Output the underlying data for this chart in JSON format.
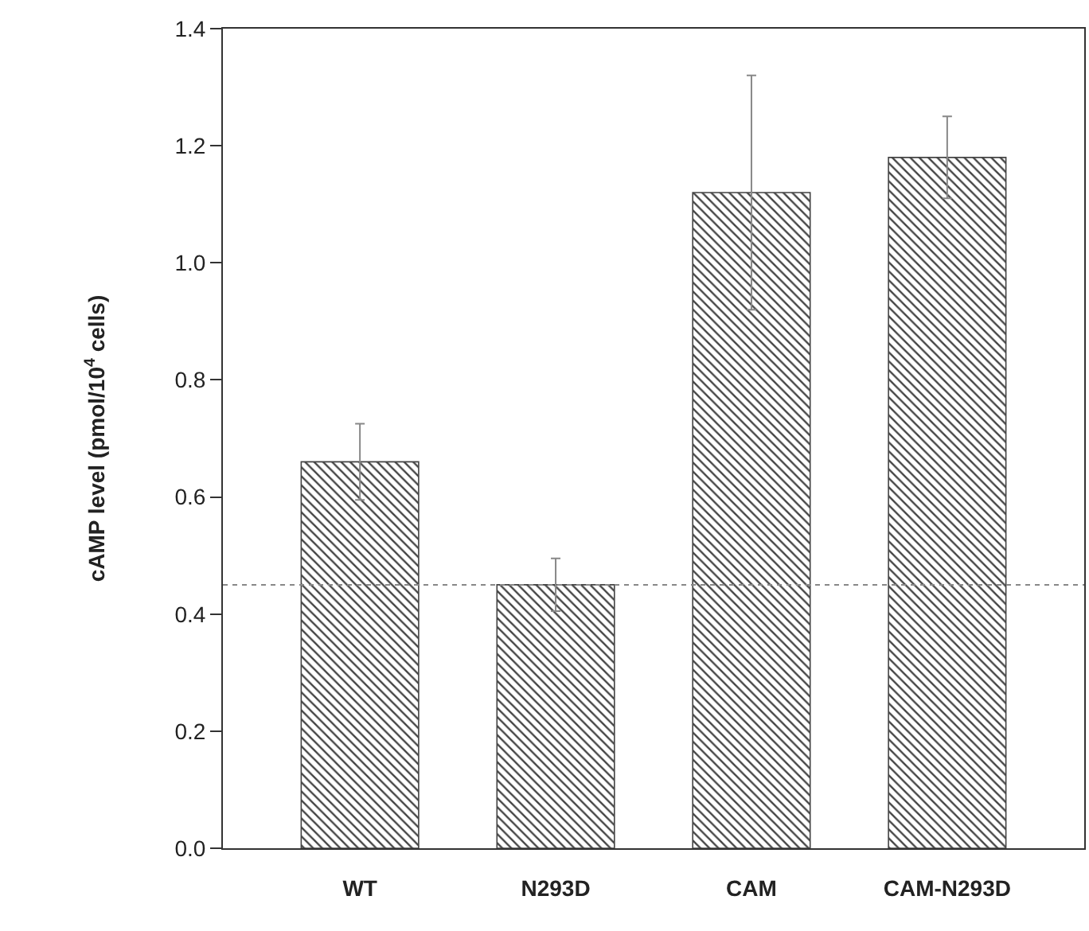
{
  "chart_data": {
    "type": "bar",
    "ylabel": "cAMP level (pmol/10$^{4}$ cells)",
    "categories": [
      "WT",
      "N293D",
      "CAM",
      "CAM-N293D"
    ],
    "values": [
      0.66,
      0.45,
      1.12,
      1.18
    ],
    "errors": [
      0.065,
      0.045,
      0.2,
      0.07
    ],
    "color": "#444444",
    "ylim": [
      0,
      1.4
    ],
    "yticks": [
      {
        "value": 0,
        "label": "0.0"
      },
      {
        "value": 0.2,
        "label": "0.2"
      },
      {
        "value": 0.4,
        "label": "0.4"
      },
      {
        "value": 0.6,
        "label": "0.6"
      },
      {
        "value": 0.8,
        "label": "0.8"
      },
      {
        "value": 1.0,
        "label": "1.0"
      },
      {
        "value": 1.2,
        "label": "1.2"
      },
      {
        "value": 1.4,
        "label": "1.4"
      }
    ],
    "ref_lines": [
      {
        "axis": "y",
        "value": 0.45,
        "color": "#888888",
        "line_style": "dotted"
      }
    ]
  }
}
